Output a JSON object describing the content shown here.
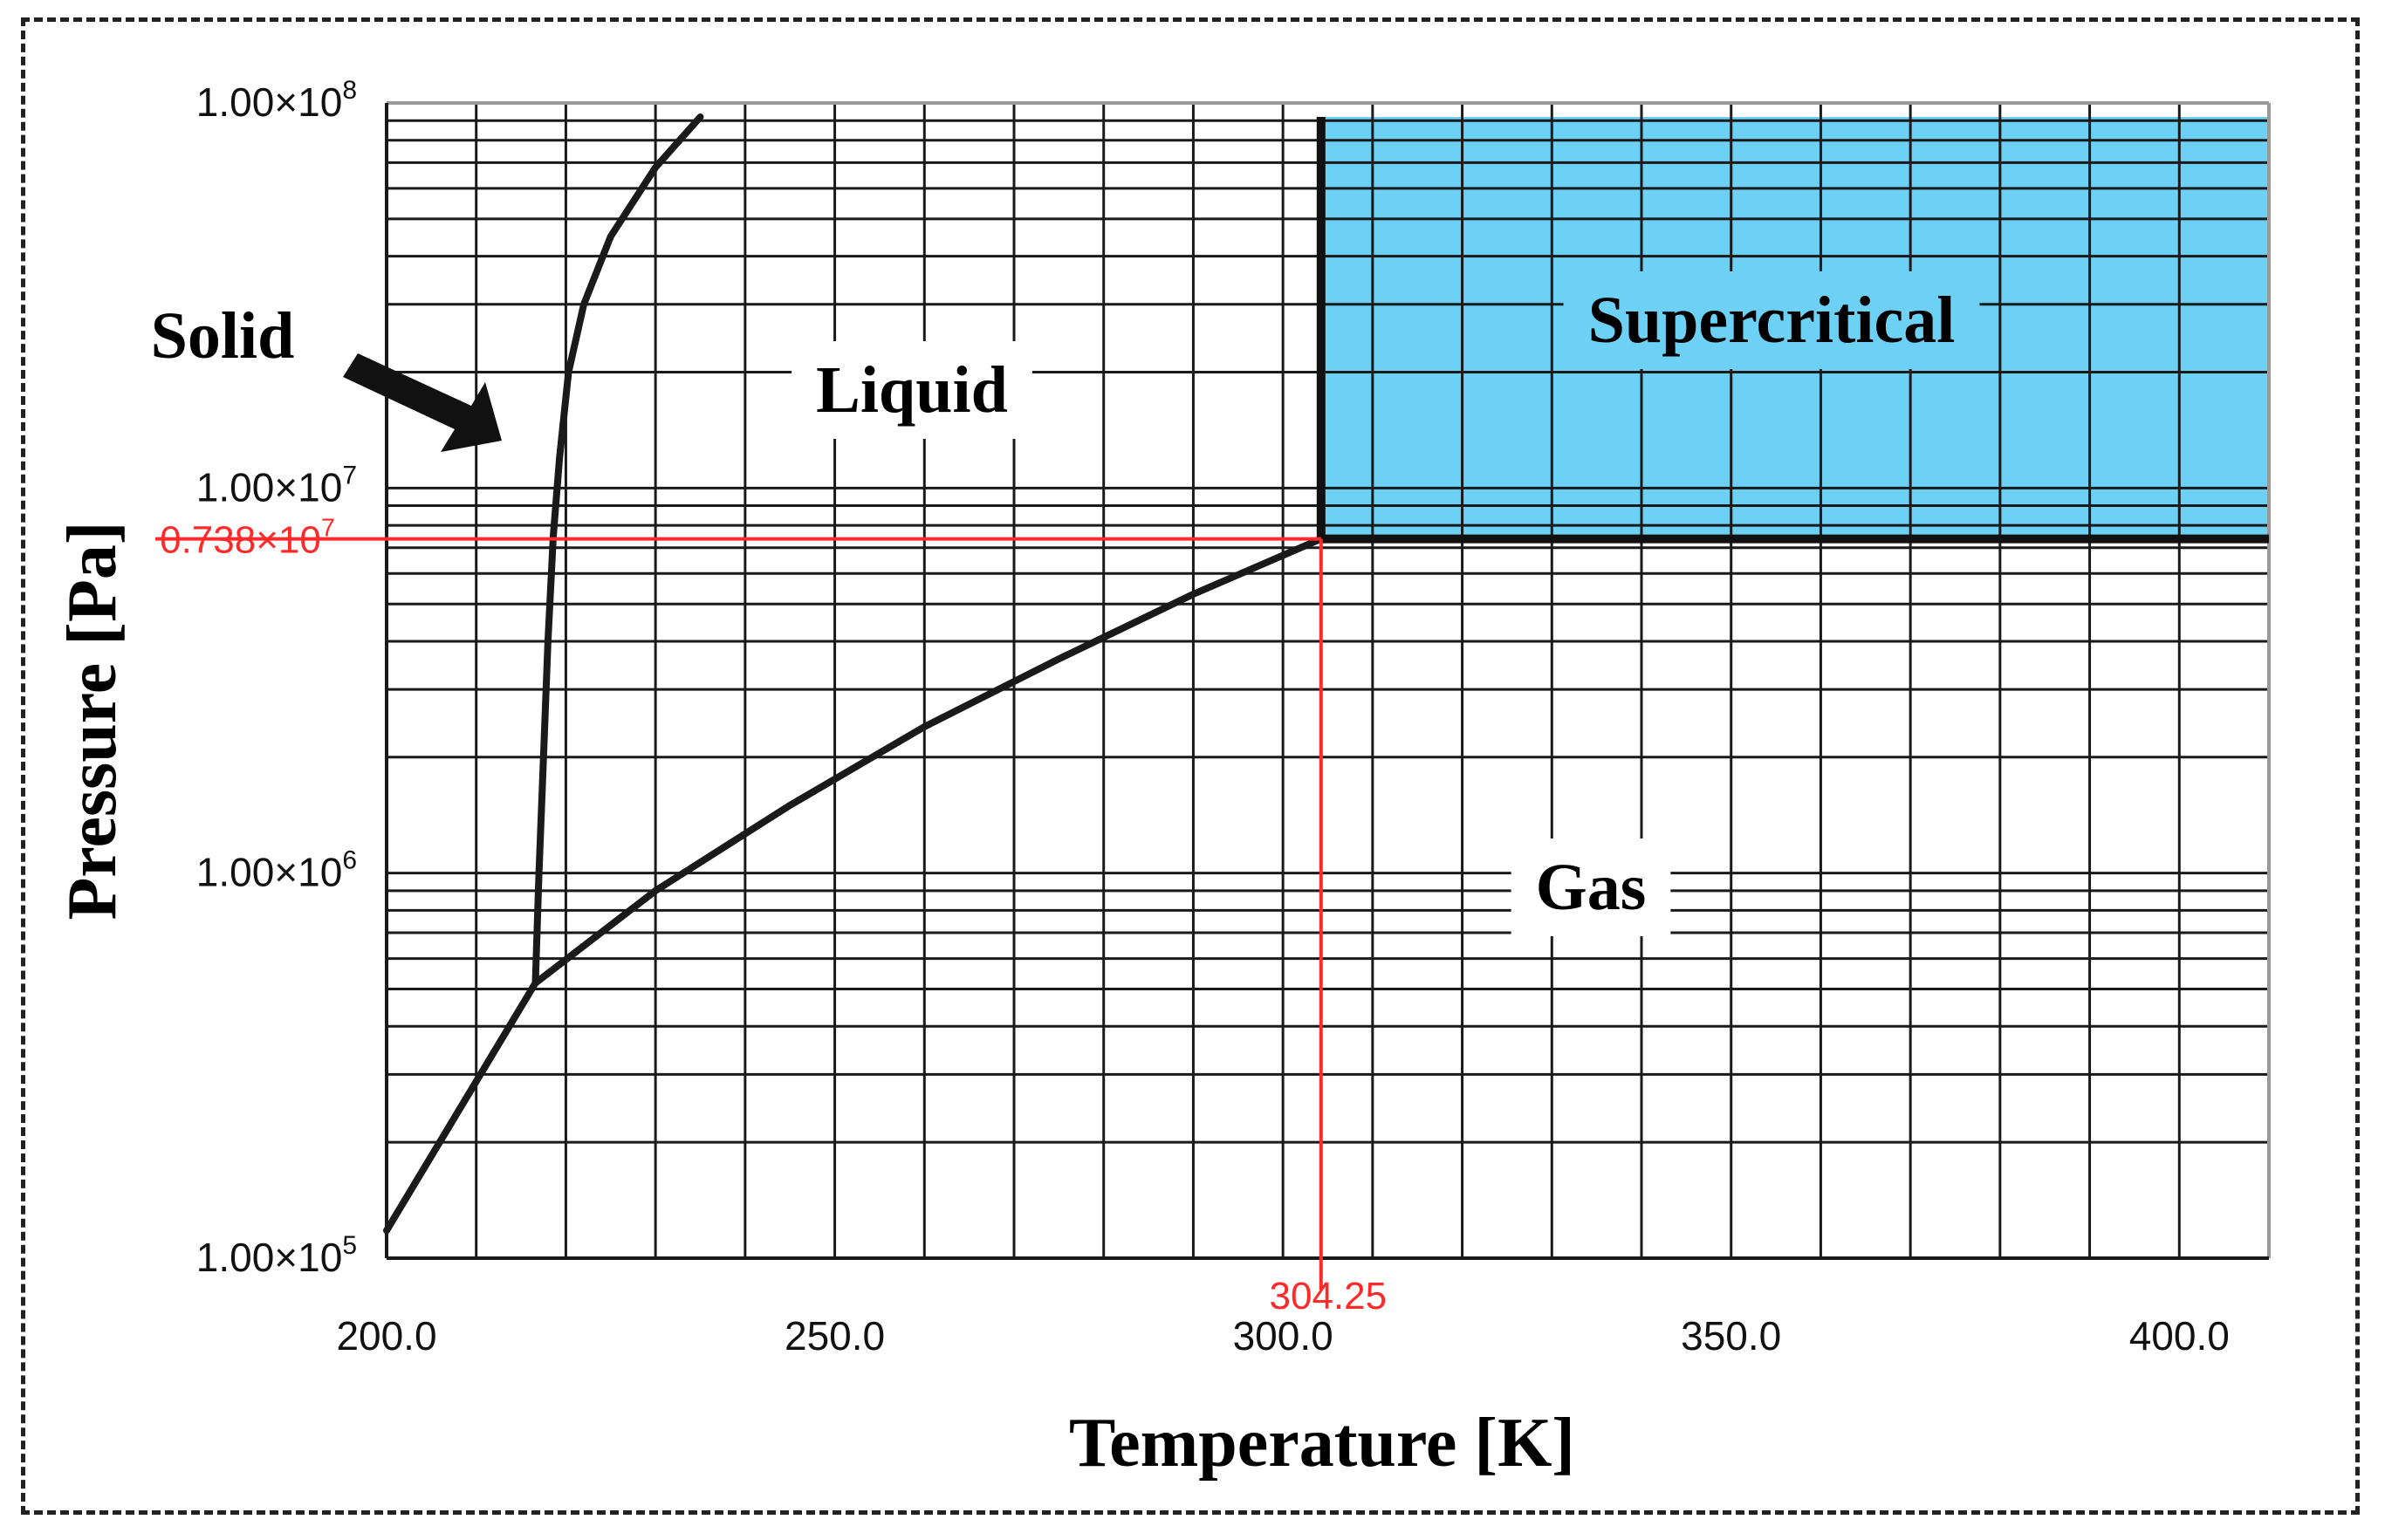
{
  "chart_data": {
    "type": "line",
    "title": "",
    "xlabel": "Temperature [K]",
    "ylabel": "Pressure [Pa]",
    "x_scale": "linear",
    "y_scale": "log",
    "xlim": [
      200,
      410
    ],
    "ylim": [
      100000,
      100000000
    ],
    "grid": true,
    "x_ticks": [
      {
        "value": 200,
        "label": "200.0"
      },
      {
        "value": 250,
        "label": "250.0"
      },
      {
        "value": 300,
        "label": "300.0"
      },
      {
        "value": 350,
        "label": "350.0"
      },
      {
        "value": 400,
        "label": "400.0"
      }
    ],
    "y_ticks": [
      {
        "value": 100000,
        "mantissa": "1.00×10",
        "exp": "5"
      },
      {
        "value": 1000000,
        "mantissa": "1.00×10",
        "exp": "6"
      },
      {
        "value": 10000000,
        "mantissa": "1.00×10",
        "exp": "7"
      },
      {
        "value": 100000000,
        "mantissa": "1.00×10",
        "exp": "8"
      }
    ],
    "series": [
      {
        "key": "sublimation",
        "x": [
          200,
          216.6
        ],
        "y": [
          118000,
          518000
        ],
        "color": "#1a1a1a"
      },
      {
        "key": "vaporization",
        "x": [
          216.6,
          230,
          245,
          260,
          275,
          290,
          304.25
        ],
        "y": [
          518000,
          900000,
          1500000,
          2400000,
          3600000,
          5300000,
          7380000
        ],
        "color": "#1a1a1a"
      },
      {
        "key": "melting",
        "x": [
          216.6,
          217,
          217.5,
          218,
          218.6,
          219.3,
          220.3,
          222,
          225,
          230,
          235
        ],
        "y": [
          518000,
          1000000,
          2000000,
          4000000,
          7500000,
          12000000,
          20000000,
          30000000,
          45000000,
          68000000,
          92000000
        ],
        "color": "#1a1a1a"
      }
    ],
    "critical_point": {
      "temperature": 304.25,
      "temperature_label": "304.25",
      "pressure": 7380000,
      "pressure_mantissa": "0.738×10",
      "pressure_exp": "7",
      "color": "#ff2a2a"
    },
    "supercritical_region": {
      "x": [
        304.25,
        410
      ],
      "y": [
        7380000,
        92000000
      ],
      "color": "#6dd0f5"
    },
    "annotations": [
      {
        "key": "solid",
        "text": "Solid"
      },
      {
        "key": "liquid",
        "text": "Liquid"
      },
      {
        "key": "supercritical",
        "text": "Supercritical"
      },
      {
        "key": "gas",
        "text": "Gas"
      }
    ]
  }
}
